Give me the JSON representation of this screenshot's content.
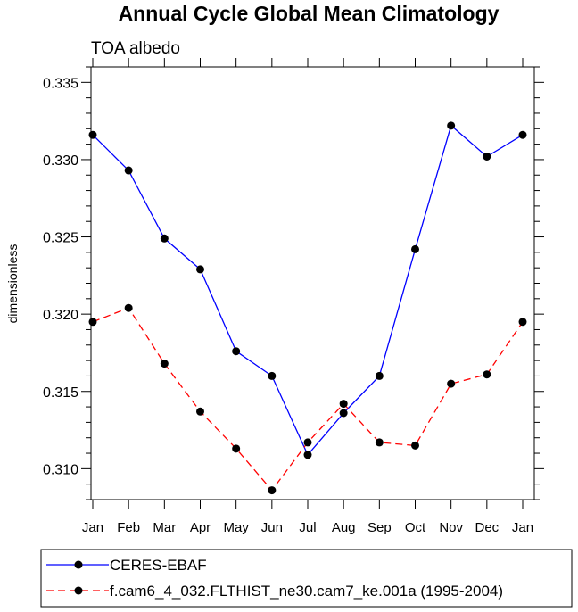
{
  "chart_data": {
    "type": "line",
    "title": "Annual Cycle Global Mean Climatology",
    "subtitle": "TOA albedo",
    "xlabel": "",
    "ylabel": "dimensionless",
    "categories": [
      "Jan",
      "Feb",
      "Mar",
      "Apr",
      "May",
      "Jun",
      "Jul",
      "Aug",
      "Sep",
      "Oct",
      "Nov",
      "Dec",
      "Jan"
    ],
    "ylim": [
      0.308,
      0.336
    ],
    "yticks": [
      0.31,
      0.315,
      0.32,
      0.325,
      0.33,
      0.335
    ],
    "ytick_labels": [
      "0.310",
      "0.315",
      "0.320",
      "0.325",
      "0.330",
      "0.335"
    ],
    "grid": false,
    "legend_position": "bottom",
    "series": [
      {
        "name": "CERES-EBAF",
        "color": "#0000ff",
        "style": "solid",
        "values": [
          0.3316,
          0.3293,
          0.3249,
          0.3229,
          0.3176,
          0.316,
          0.3109,
          0.3136,
          0.316,
          0.3242,
          0.3322,
          0.3302,
          0.3316
        ]
      },
      {
        "name": "f.cam6_4_032.FLTHIST_ne30.cam7_ke.001a (1995-2004)",
        "color": "#ff0000",
        "style": "dashed",
        "values": [
          0.3195,
          0.3204,
          0.3168,
          0.3137,
          0.3113,
          0.3086,
          0.3117,
          0.3142,
          0.3117,
          0.3115,
          0.3155,
          0.3161,
          0.3195
        ]
      }
    ]
  }
}
